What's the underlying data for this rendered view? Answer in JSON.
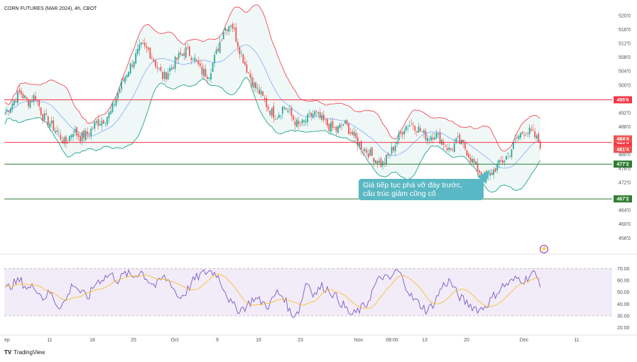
{
  "title": "CORN FUTURES (MAR 2024), 4h, CBOT",
  "callout_text_line1": "Giá tiếp tục phá vỡ đáy trước,",
  "callout_text_line2": "cấu trúc giảm cũng cố",
  "branding": "TradingView",
  "colors": {
    "bull": "#26a69a",
    "bear": "#ef5350",
    "upper_band": "#f23645",
    "lower_band": "#089981",
    "basis": "#2962ff",
    "resistance": "#f23645",
    "support": "#2e7d32",
    "rsi_line": "#7e57c2",
    "rsi_ma": "#fbc02d",
    "rsi_bg": "#ede7f6",
    "callout": "#59b8c4"
  },
  "chart_data": [
    {
      "type": "candlestick",
      "x_ticks": [
        "ep",
        "11",
        "18",
        "25",
        "Oct",
        "9",
        "16",
        "23",
        "Nov",
        "08:00",
        "13",
        "20",
        "Dec",
        "11"
      ],
      "y_ticks": [
        "520'0",
        "516'0",
        "512'0",
        "508'0",
        "504'0",
        "500'0",
        "496'4",
        "492'0",
        "488'0",
        "484'4",
        "481'4",
        "480'0",
        "476'0",
        "472'0",
        "467'2",
        "464'0",
        "460'0",
        "456'0"
      ],
      "ylim": [
        453,
        522
      ],
      "overlays": [
        "Bollinger Bands"
      ],
      "levels": [
        {
          "label": "495'6",
          "value": 495.75,
          "color": "#f23645"
        },
        {
          "label": "483'4",
          "value": 483.5,
          "color": "#f23645"
        },
        {
          "label": "477'2",
          "value": 477.25,
          "color": "#2e7d32"
        },
        {
          "label": "467'2",
          "value": 467.25,
          "color": "#2e7d32"
        }
      ],
      "price_tags": [
        {
          "label": "484'4",
          "value": 484.5
        },
        {
          "label": "481'4",
          "value": 481.5
        }
      ],
      "close_path": [
        492,
        495,
        498,
        495,
        497,
        491,
        489,
        486,
        483,
        487,
        485,
        486,
        489,
        490,
        492,
        498,
        503,
        507,
        511,
        510,
        506,
        502,
        505,
        508,
        510,
        508,
        504,
        503,
        509,
        516,
        518,
        511,
        505,
        500,
        497,
        493,
        491,
        494,
        491,
        488,
        490,
        492,
        490,
        488,
        487,
        489,
        486,
        483,
        481,
        479,
        477,
        480,
        484,
        488,
        489,
        487,
        485,
        486,
        484,
        481,
        484,
        482,
        478,
        475,
        473,
        476,
        478,
        481,
        485,
        487,
        486,
        483
      ]
    },
    {
      "type": "line",
      "name": "RSI",
      "y_ticks": [
        "70.00",
        "60.00",
        "50.00",
        "40.00",
        "30.00",
        "20.00"
      ],
      "ylim": [
        15,
        75
      ],
      "bands": [
        70,
        30
      ],
      "rsi_path": [
        52,
        57,
        60,
        53,
        55,
        45,
        50,
        38,
        42,
        58,
        50,
        45,
        58,
        62,
        65,
        60,
        66,
        63,
        68,
        60,
        55,
        63,
        58,
        45,
        50,
        60,
        65,
        68,
        66,
        54,
        40,
        35,
        38,
        45,
        42,
        38,
        50,
        46,
        30,
        35,
        60,
        48,
        55,
        52,
        45,
        38,
        30,
        35,
        40,
        55,
        64,
        60,
        70,
        58,
        45,
        40,
        34,
        42,
        55,
        60,
        48,
        42,
        38,
        35,
        40,
        48,
        55,
        58,
        62,
        60,
        67,
        58
      ]
    }
  ]
}
